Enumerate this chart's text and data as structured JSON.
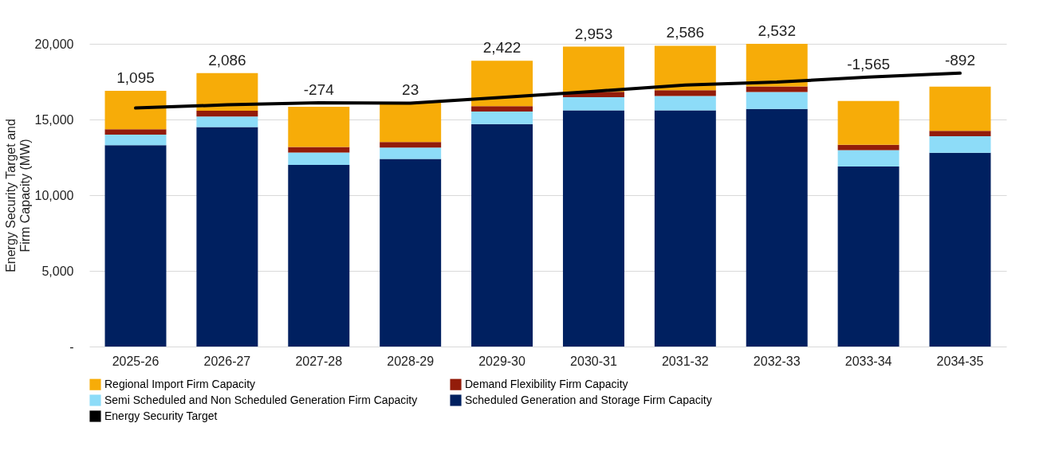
{
  "chart_data": {
    "type": "bar",
    "stacked": true,
    "ylabel": "Energy Security Target and Firm Capacity (MW)",
    "categories": [
      "2025-26",
      "2026-27",
      "2027-28",
      "2028-29",
      "2029-30",
      "2030-31",
      "2031-32",
      "2032-33",
      "2033-34",
      "2034-35"
    ],
    "series": [
      {
        "name": "Scheduled Generation and Storage Firm Capacity",
        "color": "#002060",
        "values": [
          13300,
          14500,
          12000,
          12400,
          14700,
          15600,
          15600,
          15700,
          11900,
          12800
        ]
      },
      {
        "name": "Semi Scheduled and Non Scheduled Generation Firm Capacity",
        "color": "#8ddcf8",
        "values": [
          700,
          700,
          820,
          750,
          820,
          880,
          950,
          1120,
          1080,
          1100
        ]
      },
      {
        "name": "Demand Flexibility Firm Capacity",
        "color": "#931c0a",
        "values": [
          350,
          380,
          360,
          360,
          360,
          350,
          380,
          360,
          350,
          350
        ]
      },
      {
        "name": "Regional Import Firm Capacity",
        "color": "#f7ac08",
        "values": [
          2550,
          2480,
          2660,
          2590,
          3000,
          2980,
          2940,
          2820,
          2900,
          2920
        ]
      },
      {
        "name": "Energy Security Target",
        "type": "line",
        "color": "#000000",
        "values": [
          15760,
          15970,
          16110,
          16080,
          16460,
          16860,
          17280,
          17470,
          17800,
          18060
        ]
      }
    ],
    "ylim": [
      0,
      20000
    ],
    "yticks": [
      {
        "value": 0,
        "label": "-"
      },
      {
        "value": 5000,
        "label": "5,000"
      },
      {
        "value": 10000,
        "label": "10,000"
      },
      {
        "value": 15000,
        "label": "15,000"
      },
      {
        "value": 20000,
        "label": "20,000"
      }
    ],
    "grid": "y",
    "legend": "bottom",
    "annotations": [
      {
        "text": "1,095",
        "x": "2025-26",
        "y": 16900
      },
      {
        "text": "2,086",
        "x": "2026-27",
        "y": 18060
      },
      {
        "text": "-274",
        "x": "2027-28",
        "y": 16110
      },
      {
        "text": "23",
        "x": "2028-29",
        "y": 16100
      },
      {
        "text": "2,422",
        "x": "2029-30",
        "y": 18880
      },
      {
        "text": "2,953",
        "x": "2030-31",
        "y": 19810
      },
      {
        "text": "2,586",
        "x": "2031-32",
        "y": 19870
      },
      {
        "text": "2,532",
        "x": "2032-33",
        "y": 20000
      },
      {
        "text": "-1,565",
        "x": "2033-34",
        "y": 17800
      },
      {
        "text": "-892",
        "x": "2034-35",
        "y": 18060
      }
    ]
  }
}
